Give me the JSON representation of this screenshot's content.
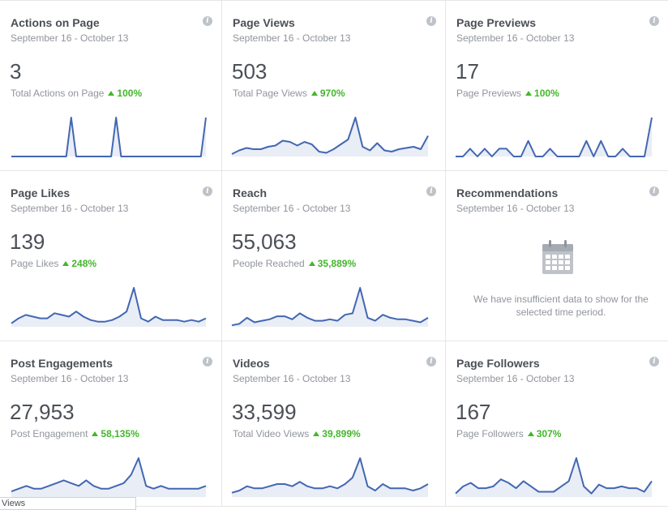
{
  "cards": [
    {
      "title": "Actions on Page",
      "date": "September 16 - October 13",
      "value": "3",
      "sub_label": "Total Actions on Page",
      "delta": "100%",
      "spark": [
        0,
        0,
        0,
        0,
        0,
        0,
        0,
        0,
        0,
        0,
        0,
        0,
        1,
        0,
        0,
        0,
        0,
        0,
        0,
        0,
        0,
        1,
        0,
        0,
        0,
        0,
        0,
        0,
        0,
        0,
        0,
        0,
        0,
        0,
        0,
        0,
        0,
        0,
        0,
        1
      ]
    },
    {
      "title": "Page Views",
      "date": "September 16 - October 13",
      "value": "503",
      "sub_label": "Total Page Views",
      "delta": "970%",
      "spark": [
        2,
        5,
        7,
        6,
        6,
        8,
        9,
        13,
        12,
        9,
        12,
        10,
        4,
        3,
        6,
        10,
        14,
        32,
        8,
        5,
        11,
        5,
        4,
        6,
        7,
        8,
        6,
        17
      ]
    },
    {
      "title": "Page Previews",
      "date": "September 16 - October 13",
      "value": "17",
      "sub_label": "Page Previews",
      "delta": "100%",
      "spark": [
        0,
        0,
        1,
        0,
        1,
        0,
        1,
        1,
        0,
        0,
        2,
        0,
        0,
        1,
        0,
        0,
        0,
        0,
        2,
        0,
        2,
        0,
        0,
        1,
        0,
        0,
        0,
        5
      ]
    },
    {
      "title": "Page Likes",
      "date": "September 16 - October 13",
      "value": "139",
      "sub_label": "Page Likes",
      "delta": "248%",
      "spark": [
        2,
        5,
        7,
        6,
        5,
        5,
        8,
        7,
        6,
        9,
        6,
        4,
        3,
        3,
        4,
        6,
        9,
        23,
        5,
        3,
        6,
        4,
        4,
        4,
        3,
        4,
        3,
        5
      ]
    },
    {
      "title": "Reach",
      "date": "September 16 - October 13",
      "value": "55,063",
      "sub_label": "People Reached",
      "delta": "35,889%",
      "spark": [
        1,
        2,
        6,
        3,
        4,
        5,
        7,
        7,
        5,
        9,
        6,
        4,
        4,
        5,
        4,
        8,
        9,
        26,
        6,
        4,
        8,
        6,
        5,
        5,
        4,
        3,
        6
      ]
    },
    {
      "title": "Recommendations",
      "date": "September 16 - October 13",
      "empty_message": "We have insufficient data to show for the selected time period."
    },
    {
      "title": "Post Engagements",
      "date": "September 16 - October 13",
      "value": "27,953",
      "sub_label": "Post Engagement",
      "delta": "58,135%",
      "spark": [
        2,
        3,
        4,
        3,
        3,
        4,
        5,
        6,
        5,
        4,
        6,
        4,
        3,
        3,
        4,
        5,
        8,
        14,
        4,
        3,
        4,
        3,
        3,
        3,
        3,
        3,
        4
      ]
    },
    {
      "title": "Videos",
      "date": "September 16 - October 13",
      "value": "33,599",
      "sub_label": "Total Video Views",
      "delta": "39,899%",
      "spark": [
        2,
        3,
        5,
        4,
        4,
        5,
        6,
        6,
        5,
        7,
        5,
        4,
        4,
        5,
        4,
        6,
        9,
        18,
        5,
        3,
        6,
        4,
        4,
        4,
        3,
        4,
        6
      ]
    },
    {
      "title": "Page Followers",
      "date": "September 16 - October 13",
      "value": "167",
      "sub_label": "Page Followers",
      "delta": "307%",
      "spark": [
        2,
        6,
        8,
        5,
        5,
        6,
        10,
        8,
        5,
        9,
        6,
        3,
        3,
        3,
        6,
        9,
        22,
        6,
        2,
        7,
        5,
        5,
        6,
        5,
        5,
        3,
        9
      ]
    }
  ],
  "tooltip_text": "Views",
  "colors": {
    "line": "#4267b2",
    "fill": "#e9edf6",
    "positive": "#42b72a"
  },
  "icons": {
    "info": "info-icon",
    "calendar": "calendar-icon",
    "up_arrow": "up-triangle-icon"
  }
}
